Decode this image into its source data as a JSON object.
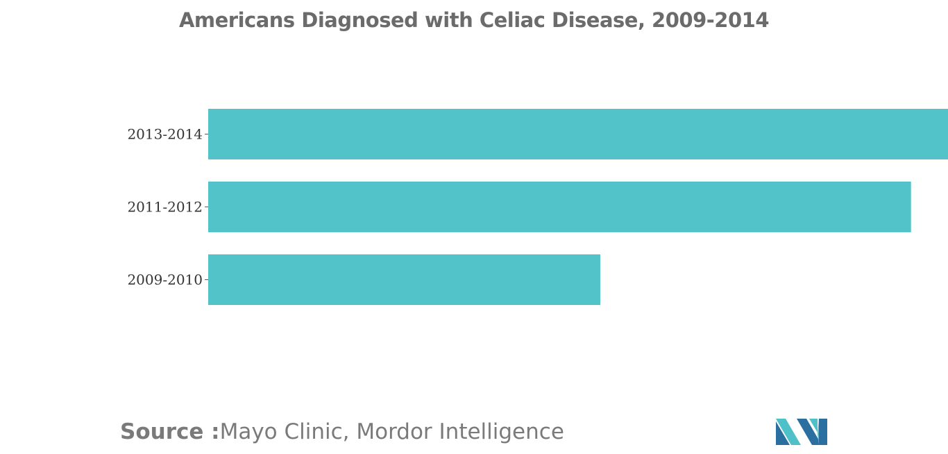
{
  "chart_data": {
    "type": "bar",
    "orientation": "horizontal",
    "title": "Americans Diagnosed with Celiac Disease, 2009-2014",
    "categories": [
      "2013-2014",
      "2011-2012",
      "2009-2010"
    ],
    "values": [
      1.0,
      0.95,
      0.53
    ],
    "xlim": [
      0,
      1.0
    ],
    "grid": false,
    "bar_color": "#52c4c9"
  },
  "source": {
    "prefix": "Source :",
    "text": "Mayo Clinic, Mordor Intelligence"
  },
  "colors": {
    "bar": "#52c4c9",
    "logo_dark": "#2b6fa0",
    "logo_light": "#4dc0c8"
  }
}
